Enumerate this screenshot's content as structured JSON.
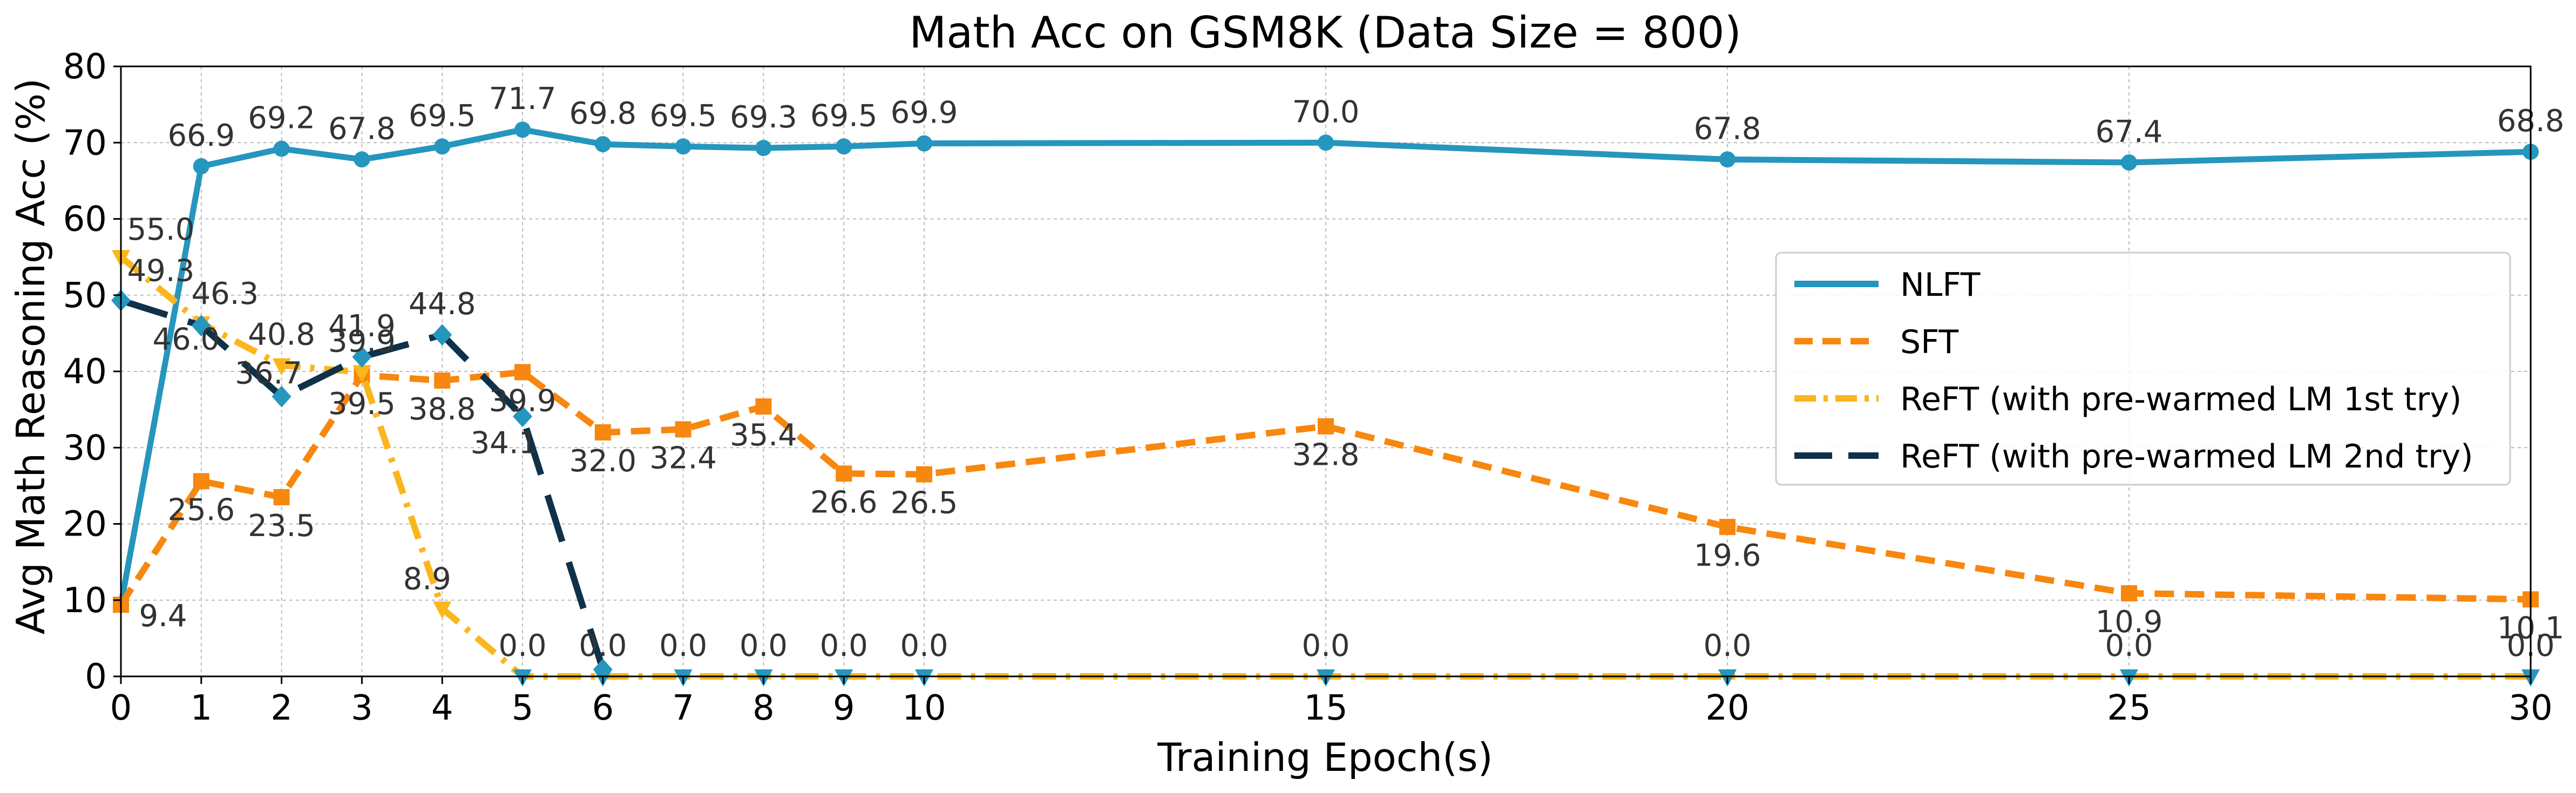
{
  "chart_data": {
    "type": "line",
    "title": "Math Acc on GSM8K (Data Size = 800)",
    "xlabel": "Training Epoch(s)",
    "ylabel": "Avg Math Reasoning Acc (%)",
    "xlim": [
      0,
      30
    ],
    "ylim": [
      0,
      80
    ],
    "xticks": [
      0,
      1,
      2,
      3,
      4,
      5,
      6,
      7,
      8,
      9,
      10,
      15,
      20,
      25,
      30
    ],
    "yticks": [
      0,
      10,
      20,
      30,
      40,
      50,
      60,
      70,
      80
    ],
    "grid": true,
    "legend_position": "center-right",
    "series": [
      {
        "name": "NLFT",
        "color": "#2596be",
        "style": "solid",
        "marker": "circle",
        "x": [
          0,
          1,
          2,
          3,
          4,
          5,
          6,
          7,
          8,
          9,
          10,
          15,
          20,
          25,
          30
        ],
        "values": [
          9.4,
          66.9,
          69.2,
          67.8,
          69.5,
          71.7,
          69.8,
          69.5,
          69.3,
          69.5,
          69.9,
          70.0,
          67.8,
          67.4,
          68.8
        ],
        "labels": [
          "9.4",
          "66.9",
          "69.2",
          "67.8",
          "69.5",
          "71.7",
          "69.8",
          "69.5",
          "69.3",
          "69.5",
          "69.9",
          "70.0",
          "67.8",
          "67.4",
          "68.8"
        ]
      },
      {
        "name": "SFT",
        "color": "#f7870f",
        "style": "dashed",
        "marker": "square",
        "x": [
          0,
          1,
          2,
          3,
          4,
          5,
          6,
          7,
          8,
          9,
          10,
          15,
          20,
          25,
          30
        ],
        "values": [
          9.4,
          25.6,
          23.5,
          39.5,
          38.8,
          39.9,
          32.0,
          32.4,
          35.4,
          26.6,
          26.5,
          32.8,
          19.6,
          10.9,
          10.1
        ],
        "labels": [
          "9.4",
          "25.6",
          "23.5",
          "39.5",
          "38.8",
          "39.9",
          "32.0",
          "32.4",
          "35.4",
          "26.6",
          "26.5",
          "32.8",
          "19.6",
          "10.9",
          "10.1"
        ]
      },
      {
        "name": "ReFT (with pre-warmed LM 1st try)",
        "color": "#fbb61c",
        "style": "dashdot",
        "marker": "triangle",
        "x": [
          0,
          1,
          2,
          3,
          4,
          5,
          6,
          7,
          8,
          9,
          10,
          15,
          20,
          25,
          30
        ],
        "values": [
          55.0,
          46.3,
          40.8,
          39.9,
          8.9,
          0.0,
          0.0,
          0.0,
          0.0,
          0.0,
          0.0,
          0.0,
          0.0,
          0.0,
          0.0
        ],
        "labels": [
          "55.0",
          "46.3",
          "40.8",
          "39.9",
          "8.9",
          "0.0",
          "0.0",
          "0.0",
          "0.0",
          "0.0",
          "0.0",
          "0.0",
          "0.0",
          "0.0",
          "0.0"
        ]
      },
      {
        "name": "ReFT (with pre-warmed LM 2nd try)",
        "color": "#0f3149",
        "style": "longdash",
        "marker": "diamond",
        "x": [
          0,
          1,
          2,
          3,
          4,
          5,
          6
        ],
        "values": [
          49.3,
          46.0,
          36.7,
          41.9,
          44.8,
          34.1,
          0.9
        ],
        "labels": [
          "49.3",
          "46.0",
          "36.7",
          "41.9",
          "44.8",
          "34.1",
          ""
        ]
      }
    ]
  }
}
